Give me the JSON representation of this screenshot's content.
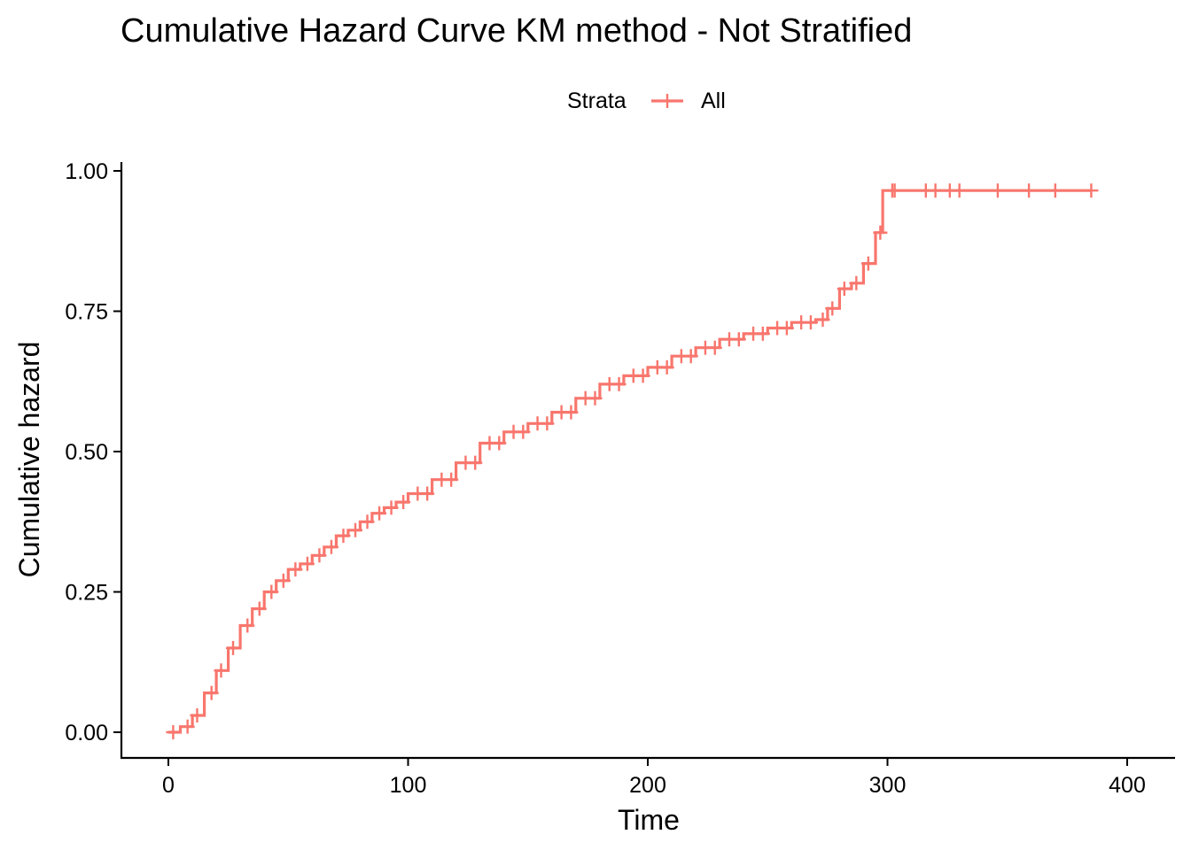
{
  "chart_data": {
    "type": "line",
    "step": true,
    "title": "Cumulative Hazard Curve KM method - Not Stratified",
    "xlabel": "Time",
    "ylabel": "Cumulative hazard",
    "xlim": [
      -20,
      420
    ],
    "ylim": [
      -0.05,
      1.02
    ],
    "xticks": [
      0,
      100,
      200,
      300,
      400
    ],
    "xtick_labels": [
      "0",
      "100",
      "200",
      "300",
      "400"
    ],
    "yticks": [
      0,
      0.25,
      0.5,
      0.75,
      1.0
    ],
    "ytick_labels": [
      "0.00",
      "0.25",
      "0.50",
      "0.75",
      "1.00"
    ],
    "grid": false,
    "legend": {
      "title": "Strata",
      "placement": "top"
    },
    "series": [
      {
        "name": "All",
        "color": "#F8766D",
        "x": [
          0,
          5,
          10,
          15,
          20,
          25,
          30,
          35,
          40,
          45,
          50,
          55,
          60,
          65,
          70,
          75,
          80,
          85,
          90,
          95,
          100,
          110,
          120,
          130,
          140,
          150,
          160,
          170,
          180,
          190,
          200,
          210,
          220,
          230,
          240,
          250,
          260,
          270,
          275,
          280,
          285,
          290,
          295,
          298,
          385
        ],
        "y": [
          0.0,
          0.01,
          0.03,
          0.07,
          0.11,
          0.15,
          0.19,
          0.22,
          0.25,
          0.27,
          0.29,
          0.3,
          0.315,
          0.33,
          0.35,
          0.36,
          0.375,
          0.39,
          0.4,
          0.41,
          0.425,
          0.45,
          0.48,
          0.515,
          0.535,
          0.55,
          0.57,
          0.595,
          0.62,
          0.635,
          0.65,
          0.67,
          0.685,
          0.7,
          0.71,
          0.72,
          0.73,
          0.735,
          0.755,
          0.79,
          0.8,
          0.835,
          0.89,
          0.965,
          0.965
        ],
        "censor_x": [
          2,
          8,
          12,
          18,
          22,
          27,
          33,
          38,
          43,
          48,
          53,
          58,
          63,
          68,
          73,
          78,
          83,
          88,
          93,
          98,
          104,
          108,
          114,
          118,
          124,
          128,
          134,
          138,
          144,
          148,
          154,
          158,
          164,
          168,
          174,
          178,
          184,
          188,
          194,
          198,
          204,
          208,
          214,
          218,
          224,
          228,
          234,
          238,
          244,
          248,
          254,
          258,
          264,
          268,
          273,
          277,
          282,
          287,
          292,
          297,
          302,
          303,
          316,
          320,
          326,
          330,
          346,
          359,
          370,
          385
        ]
      }
    ]
  }
}
